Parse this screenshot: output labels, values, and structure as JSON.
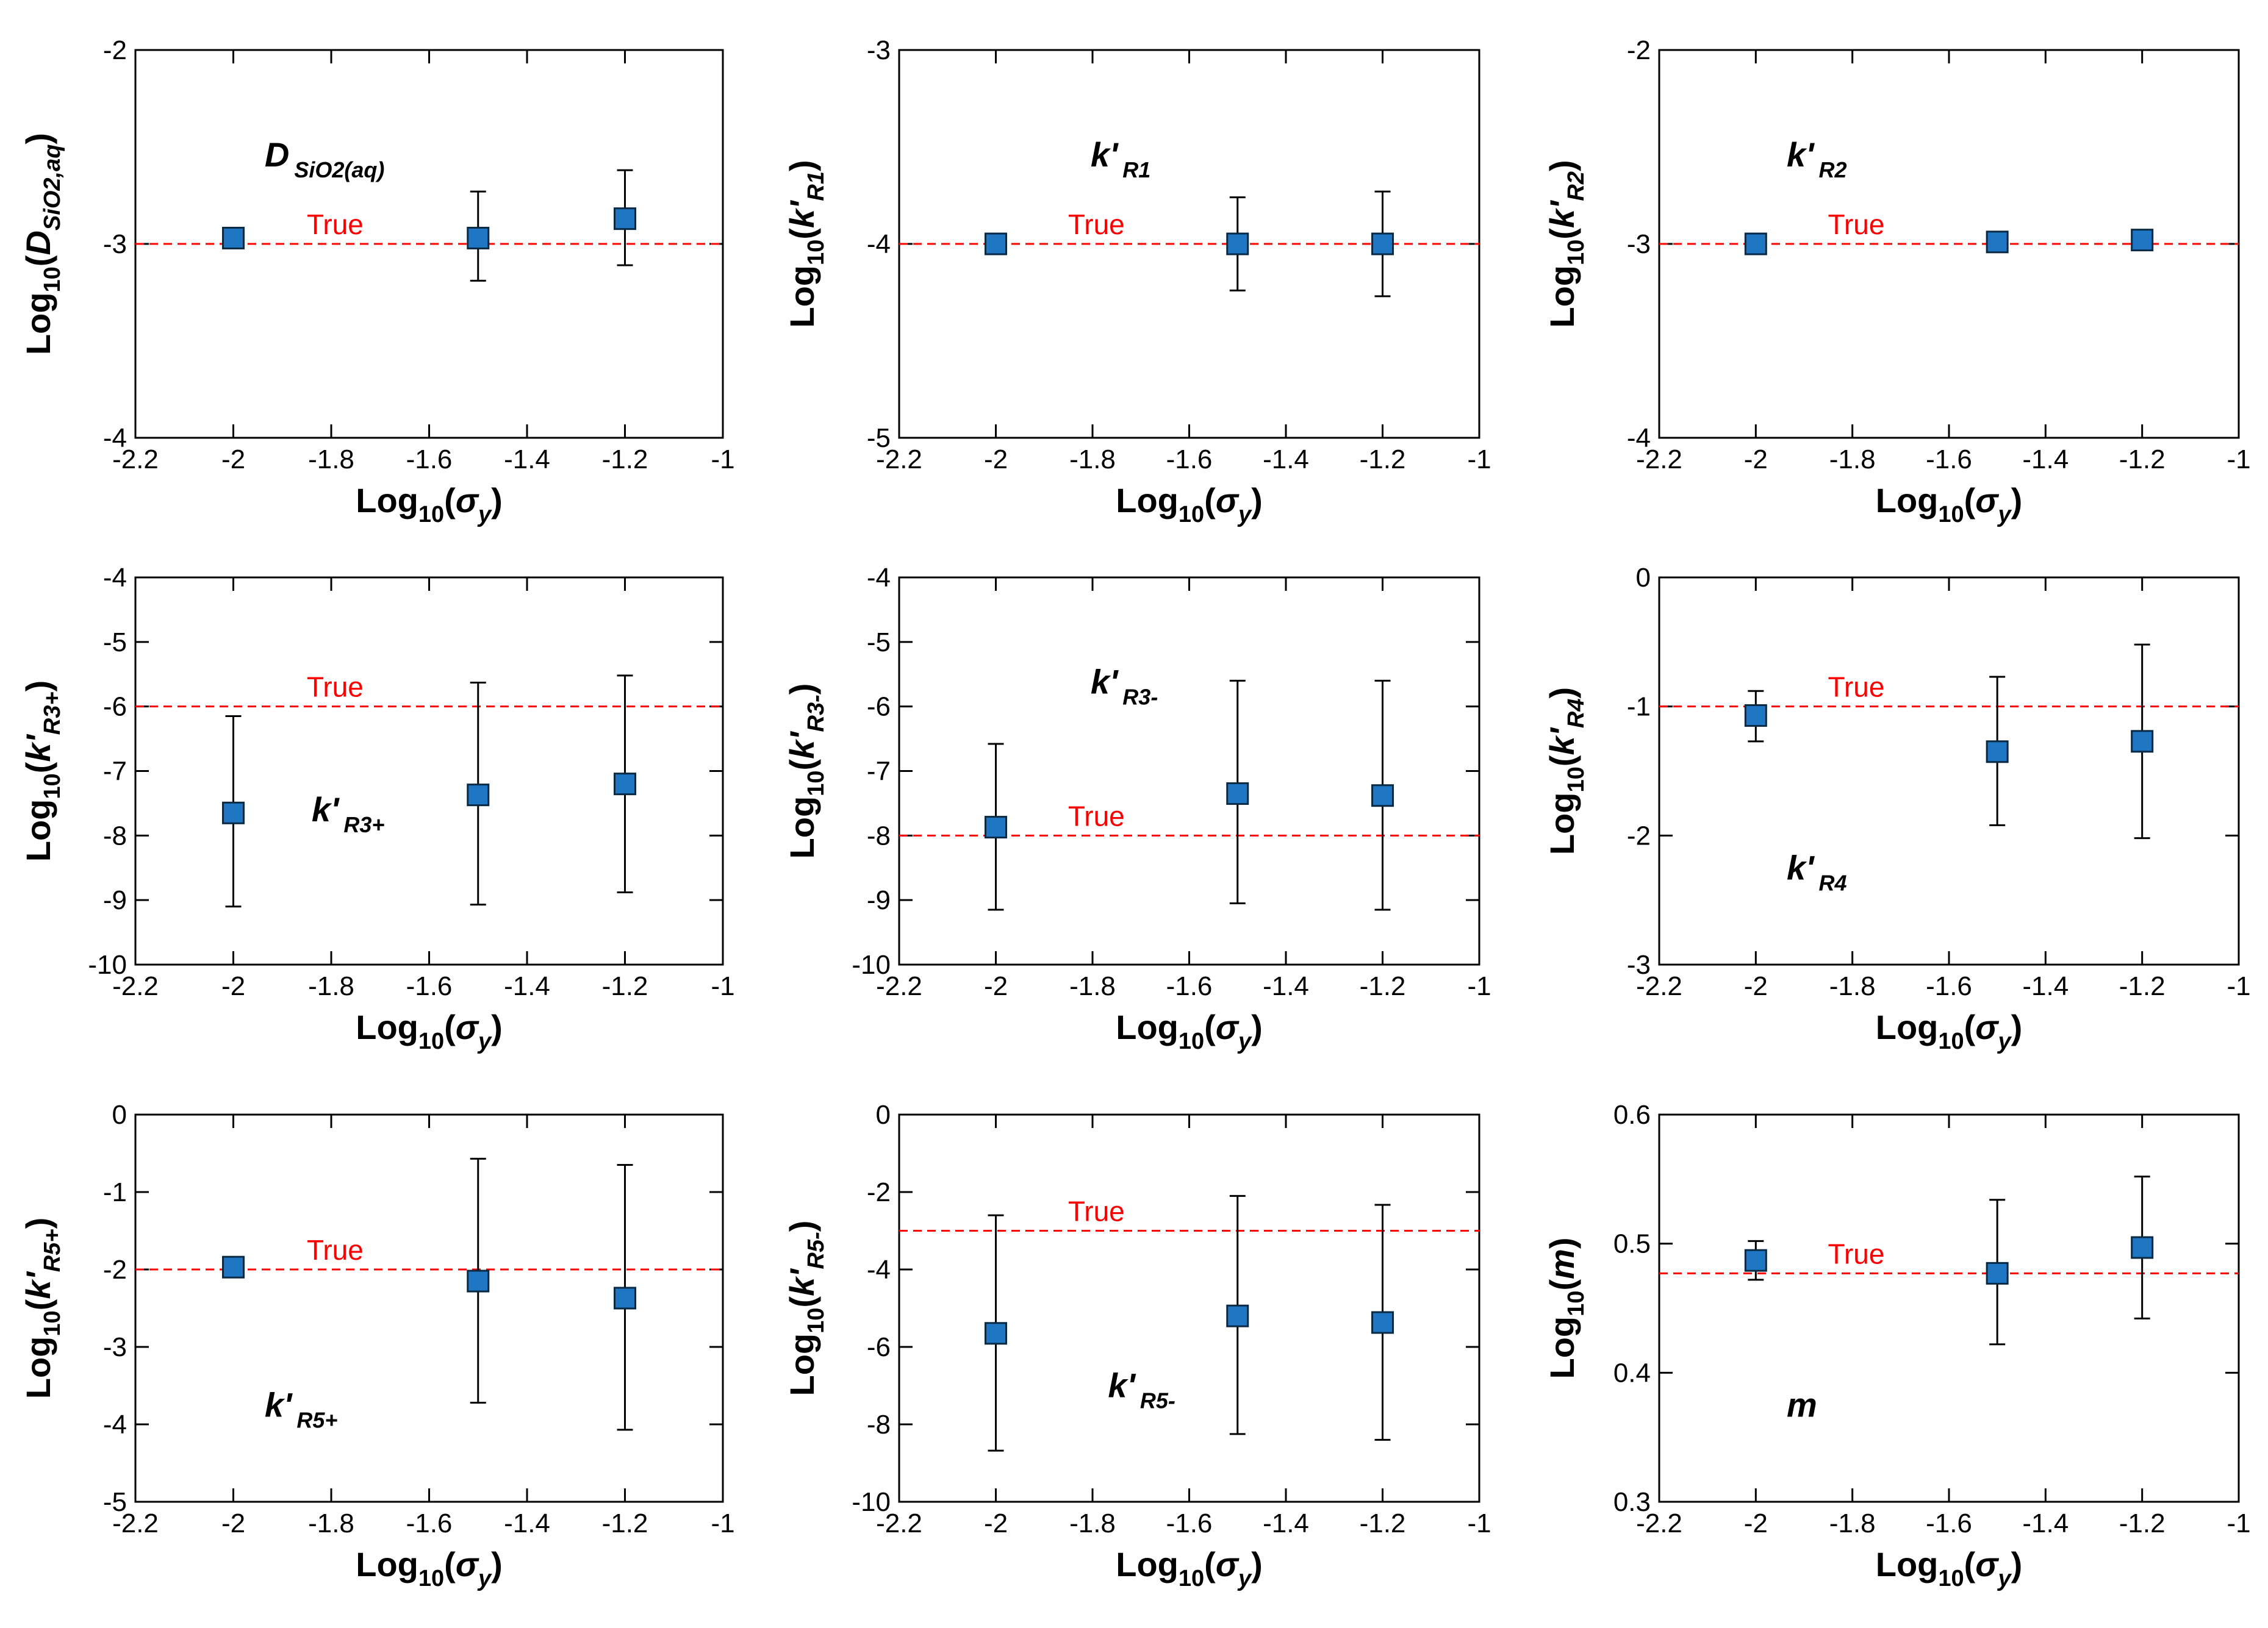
{
  "figure": {
    "xlabel": "Log10(σy)",
    "true_label": "True",
    "colors": {
      "marker": "#1f77c4",
      "marker_edge": "#0a2a44",
      "true_line": "#ff0000",
      "axis": "#000000",
      "errorbar": "#000000"
    }
  },
  "chart_data": [
    {
      "type": "scatter",
      "ylabel": "Log10(D SiO2,aq)",
      "ylabel_base": "Log",
      "ylabel_base_sub": "10",
      "ylabel_var": "D",
      "ylabel_var_sub": "SiO2,aq",
      "annotation": {
        "main": "D",
        "sub": "SiO2(aq)",
        "position": "top-left"
      },
      "xlim": [
        -2.2,
        -1
      ],
      "ylim": [
        -4,
        -2
      ],
      "xticks": [
        -2.2,
        -2,
        -1.8,
        -1.6,
        -1.4,
        -1.2,
        -1
      ],
      "yticks": [
        -4,
        -3,
        -2
      ],
      "x": [
        -2,
        -1.5,
        -1.2
      ],
      "y": [
        -2.97,
        -2.97,
        -2.87
      ],
      "err_low": [
        -3.02,
        -3.19,
        -3.11
      ],
      "err_high": [
        -2.93,
        -2.73,
        -2.62
      ],
      "true_value": -3
    },
    {
      "type": "scatter",
      "ylabel": "Log10(k' R1)",
      "ylabel_base": "Log",
      "ylabel_base_sub": "10",
      "ylabel_var": "k'",
      "ylabel_var_sub": "R1",
      "annotation": {
        "main": "k'",
        "sub": "R1",
        "position": "top-center"
      },
      "xlim": [
        -2.2,
        -1
      ],
      "ylim": [
        -5,
        -3
      ],
      "xticks": [
        -2.2,
        -2,
        -1.8,
        -1.6,
        -1.4,
        -1.2,
        -1
      ],
      "yticks": [
        -5,
        -4,
        -3
      ],
      "x": [
        -2,
        -1.5,
        -1.2
      ],
      "y": [
        -4.0,
        -4.0,
        -4.0
      ],
      "err_low": [
        -4.0,
        -4.24,
        -4.27
      ],
      "err_high": [
        -4.0,
        -3.76,
        -3.73
      ],
      "true_value": -4
    },
    {
      "type": "scatter",
      "ylabel": "Log10(k' R2)",
      "ylabel_base": "Log",
      "ylabel_base_sub": "10",
      "ylabel_var": "k'",
      "ylabel_var_sub": "R2",
      "annotation": {
        "main": "k'",
        "sub": "R2",
        "position": "top-left"
      },
      "xlim": [
        -2.2,
        -1
      ],
      "ylim": [
        -4,
        -2
      ],
      "xticks": [
        -2.2,
        -2,
        -1.8,
        -1.6,
        -1.4,
        -1.2,
        -1
      ],
      "yticks": [
        -4,
        -3,
        -2
      ],
      "x": [
        -2,
        -1.5,
        -1.2
      ],
      "y": [
        -3.0,
        -2.99,
        -2.98
      ],
      "err_low": [
        -3.0,
        -3.01,
        -3.03
      ],
      "err_high": [
        -3.0,
        -2.97,
        -2.93
      ],
      "true_value": -3
    },
    {
      "type": "scatter",
      "ylabel": "Log10(k' R3+)",
      "ylabel_base": "Log",
      "ylabel_base_sub": "10",
      "ylabel_var": "k'",
      "ylabel_var_sub": "R3+",
      "annotation": {
        "main": "k'",
        "sub": "R3+",
        "position": "middle-left"
      },
      "xlim": [
        -2.2,
        -1
      ],
      "ylim": [
        -10,
        -4
      ],
      "xticks": [
        -2.2,
        -2,
        -1.8,
        -1.6,
        -1.4,
        -1.2,
        -1
      ],
      "yticks": [
        -10,
        -9,
        -8,
        -7,
        -6,
        -5,
        -4
      ],
      "x": [
        -2,
        -1.5,
        -1.2
      ],
      "y": [
        -7.65,
        -7.37,
        -7.2
      ],
      "err_low": [
        -9.1,
        -9.07,
        -8.88
      ],
      "err_high": [
        -6.15,
        -5.63,
        -5.52
      ],
      "true_value": -6
    },
    {
      "type": "scatter",
      "ylabel": "Log10(k' R3-)",
      "ylabel_base": "Log",
      "ylabel_base_sub": "10",
      "ylabel_var": "k'",
      "ylabel_var_sub": "R3-",
      "annotation": {
        "main": "k'",
        "sub": "R3-",
        "position": "top-center"
      },
      "xlim": [
        -2.2,
        -1
      ],
      "ylim": [
        -10,
        -4
      ],
      "xticks": [
        -2.2,
        -2,
        -1.8,
        -1.6,
        -1.4,
        -1.2,
        -1
      ],
      "yticks": [
        -10,
        -9,
        -8,
        -7,
        -6,
        -5,
        -4
      ],
      "x": [
        -2,
        -1.5,
        -1.2
      ],
      "y": [
        -7.87,
        -7.35,
        -7.38
      ],
      "err_low": [
        -9.15,
        -9.05,
        -9.15
      ],
      "err_high": [
        -6.58,
        -5.6,
        -5.6
      ],
      "true_value": -8
    },
    {
      "type": "scatter",
      "ylabel": "Log10(k' R4)",
      "ylabel_base": "Log",
      "ylabel_base_sub": "10",
      "ylabel_var": "k'",
      "ylabel_var_sub": "R4",
      "annotation": {
        "main": "k'",
        "sub": "R4",
        "position": "bottom-left"
      },
      "xlim": [
        -2.2,
        -1
      ],
      "ylim": [
        -3,
        0
      ],
      "xticks": [
        -2.2,
        -2,
        -1.8,
        -1.6,
        -1.4,
        -1.2,
        -1
      ],
      "yticks": [
        -3,
        -2,
        -1,
        0
      ],
      "x": [
        -2,
        -1.5,
        -1.2
      ],
      "y": [
        -1.07,
        -1.35,
        -1.27
      ],
      "err_low": [
        -1.27,
        -1.92,
        -2.02
      ],
      "err_high": [
        -0.88,
        -0.77,
        -0.52
      ],
      "true_value": -1
    },
    {
      "type": "scatter",
      "ylabel": "Log10(k' R5+)",
      "ylabel_base": "Log",
      "ylabel_base_sub": "10",
      "ylabel_var": "k'",
      "ylabel_var_sub": "R5+",
      "annotation": {
        "main": "k'",
        "sub": "R5+",
        "position": "bottom-left"
      },
      "xlim": [
        -2.2,
        -1
      ],
      "ylim": [
        -5,
        0
      ],
      "xticks": [
        -2.2,
        -2,
        -1.8,
        -1.6,
        -1.4,
        -1.2,
        -1
      ],
      "yticks": [
        -5,
        -4,
        -3,
        -2,
        -1,
        0
      ],
      "x": [
        -2,
        -1.5,
        -1.2
      ],
      "y": [
        -1.97,
        -2.15,
        -2.37
      ],
      "err_low": [
        -2.0,
        -3.72,
        -4.07
      ],
      "err_high": [
        -1.94,
        -0.57,
        -0.65
      ],
      "true_value": -2
    },
    {
      "type": "scatter",
      "ylabel": "Log10(k' R5-)",
      "ylabel_base": "Log",
      "ylabel_base_sub": "10",
      "ylabel_var": "k'",
      "ylabel_var_sub": "R5-",
      "annotation": {
        "main": "k'",
        "sub": "R5-",
        "position": "bottom-center"
      },
      "xlim": [
        -2.2,
        -1
      ],
      "ylim": [
        -10,
        0
      ],
      "xticks": [
        -2.2,
        -2,
        -1.8,
        -1.6,
        -1.4,
        -1.2,
        -1
      ],
      "yticks": [
        -10,
        -8,
        -6,
        -4,
        -2,
        0
      ],
      "x": [
        -2,
        -1.5,
        -1.2
      ],
      "y": [
        -5.65,
        -5.2,
        -5.37
      ],
      "err_low": [
        -8.68,
        -8.25,
        -8.4
      ],
      "err_high": [
        -2.6,
        -2.1,
        -2.33
      ],
      "true_value": -3
    },
    {
      "type": "scatter",
      "ylabel": "Log10(m)",
      "ylabel_base": "Log",
      "ylabel_base_sub": "10",
      "ylabel_var": "m",
      "ylabel_var_sub": "",
      "annotation": {
        "main": "m",
        "sub": "",
        "position": "bottom-left"
      },
      "xlim": [
        -2.2,
        -1
      ],
      "ylim": [
        0.3,
        0.6
      ],
      "xticks": [
        -2.2,
        -2,
        -1.8,
        -1.6,
        -1.4,
        -1.2,
        -1
      ],
      "yticks": [
        0.3,
        0.4,
        0.5,
        0.6
      ],
      "x": [
        -2,
        -1.5,
        -1.2
      ],
      "y": [
        0.487,
        0.477,
        0.497
      ],
      "err_low": [
        0.472,
        0.422,
        0.442
      ],
      "err_high": [
        0.502,
        0.534,
        0.552
      ],
      "true_value": 0.477
    }
  ]
}
